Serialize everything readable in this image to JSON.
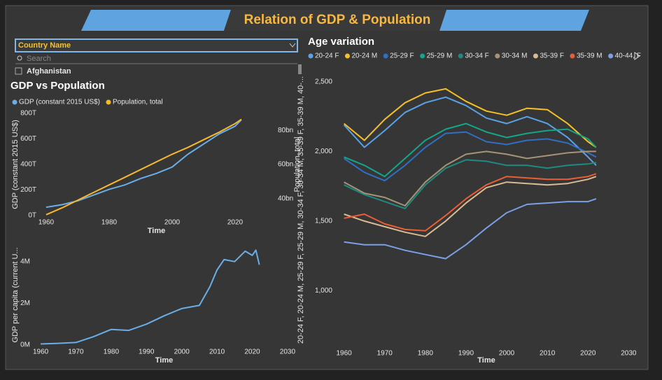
{
  "header": {
    "title": "Relation of GDP & Population"
  },
  "slicer": {
    "field": "Country Name",
    "search": "Search",
    "items": [
      "Afghanistan"
    ]
  },
  "chart_data": [
    {
      "type": "line",
      "title": "GDP vs Population",
      "xlabel": "Time",
      "ylabel": "GDP (constant 2015 US$)",
      "y2label": "Population, total",
      "x": [
        1960,
        1965,
        1970,
        1975,
        1980,
        1985,
        1990,
        1995,
        2000,
        2005,
        2010,
        2015,
        2020,
        2022
      ],
      "series": [
        {
          "name": "GDP (constant 2015 US$)",
          "color": "#6aaee8",
          "values": [
            65,
            85,
            115,
            160,
            205,
            240,
            290,
            330,
            380,
            480,
            560,
            640,
            700,
            750
          ]
        },
        {
          "name": "Population, total",
          "color": "#f5b82e",
          "axis": "y2",
          "values": [
            30.5,
            34.5,
            39,
            43.5,
            48,
            52.5,
            57,
            61.5,
            66,
            70,
            74.5,
            79,
            84,
            86.5
          ]
        }
      ],
      "xlim": [
        1958,
        2032
      ],
      "xticks": [
        1960,
        1980,
        2000,
        2020
      ],
      "ylim": [
        0,
        800
      ],
      "yticks": [
        {
          "value": 0,
          "label": "0T"
        },
        {
          "value": 200,
          "label": "200T"
        },
        {
          "value": 400,
          "label": "400T"
        },
        {
          "value": 600,
          "label": "600T"
        },
        {
          "value": 800,
          "label": "800T"
        }
      ],
      "y2lim": [
        30,
        90
      ],
      "y2ticks": [
        {
          "value": 40,
          "label": "40bn"
        },
        {
          "value": 60,
          "label": "60bn"
        },
        {
          "value": 80,
          "label": "80bn"
        }
      ]
    },
    {
      "type": "line",
      "xlabel": "Time",
      "ylabel": "GDP per capita (current U...",
      "x": [
        1960,
        1965,
        1970,
        1975,
        1980,
        1985,
        1990,
        1995,
        2000,
        2005,
        2008,
        2010,
        2012,
        2015,
        2018,
        2020,
        2021,
        2022
      ],
      "series": [
        {
          "color": "#6aaee8",
          "values": [
            0.05,
            0.08,
            0.12,
            0.4,
            0.75,
            0.7,
            1.0,
            1.4,
            1.75,
            1.9,
            2.8,
            3.6,
            4.1,
            4.0,
            4.5,
            4.3,
            4.55,
            3.85
          ]
        }
      ],
      "xlim": [
        1958,
        2032
      ],
      "xticks": [
        1960,
        1970,
        1980,
        1990,
        2000,
        2010,
        2020,
        2030
      ],
      "ylim": [
        0,
        4.8
      ],
      "yticks": [
        {
          "value": 0,
          "label": "0M"
        },
        {
          "value": 2,
          "label": "2M"
        },
        {
          "value": 4,
          "label": "4M"
        }
      ]
    },
    {
      "type": "line",
      "title": "Age variation",
      "xlabel": "Time",
      "ylabel": "20-24 F, 20-24 M, 25-29 F, 25-29 M, 30-34 F, 30-34 M, 35-39 F, 35-39 M, 40-...",
      "x": [
        1960,
        1965,
        1970,
        1975,
        1980,
        1985,
        1990,
        1995,
        2000,
        2005,
        2010,
        2015,
        2020,
        2022
      ],
      "series": [
        {
          "name": "20-24 F",
          "color": "#5aa2e6",
          "values": [
            2190,
            2030,
            2150,
            2280,
            2350,
            2390,
            2330,
            2240,
            2200,
            2250,
            2200,
            2100,
            1960,
            1900
          ]
        },
        {
          "name": "20-24 M",
          "color": "#f5c026",
          "values": [
            2200,
            2080,
            2230,
            2350,
            2420,
            2450,
            2360,
            2290,
            2260,
            2310,
            2300,
            2200,
            2070,
            2030
          ]
        },
        {
          "name": "25-29 F",
          "color": "#2f6fc4",
          "values": [
            1950,
            1850,
            1790,
            1900,
            2030,
            2130,
            2140,
            2070,
            2050,
            2080,
            2090,
            2060,
            1990,
            1960
          ]
        },
        {
          "name": "25-29 M",
          "color": "#14a58a",
          "values": [
            1960,
            1900,
            1820,
            1950,
            2080,
            2160,
            2200,
            2140,
            2100,
            2130,
            2150,
            2160,
            2090,
            2030
          ]
        },
        {
          "name": "30-34 F",
          "color": "#1f8a80",
          "values": [
            1760,
            1690,
            1640,
            1590,
            1760,
            1880,
            1940,
            1930,
            1900,
            1900,
            1880,
            1900,
            1910,
            1920
          ]
        },
        {
          "name": "30-34 M",
          "color": "#a59478",
          "values": [
            1780,
            1700,
            1670,
            1610,
            1780,
            1900,
            1980,
            2000,
            1980,
            1950,
            1970,
            1990,
            2000,
            2000
          ]
        },
        {
          "name": "35-39 F",
          "color": "#d8bb92",
          "values": [
            1550,
            1500,
            1460,
            1420,
            1390,
            1500,
            1630,
            1740,
            1780,
            1770,
            1760,
            1770,
            1800,
            1820
          ]
        },
        {
          "name": "35-39 M",
          "color": "#e85e36",
          "values": [
            1520,
            1550,
            1480,
            1440,
            1430,
            1540,
            1660,
            1760,
            1820,
            1810,
            1800,
            1800,
            1820,
            1840
          ]
        },
        {
          "name": "40-44, F",
          "color": "#7ba0e6",
          "values": [
            1350,
            1330,
            1330,
            1290,
            1260,
            1230,
            1330,
            1450,
            1560,
            1620,
            1630,
            1640,
            1640,
            1660
          ]
        }
      ],
      "xlim": [
        1958,
        2032
      ],
      "xticks": [
        1960,
        1970,
        1980,
        1990,
        2000,
        2010,
        2020,
        2030
      ],
      "ylim": [
        600,
        2560
      ],
      "yticks": [
        {
          "value": 1000,
          "label": "1,000"
        },
        {
          "value": 1500,
          "label": "1,500"
        },
        {
          "value": 2000,
          "label": "2,000"
        },
        {
          "value": 2500,
          "label": "2,500"
        }
      ]
    }
  ]
}
